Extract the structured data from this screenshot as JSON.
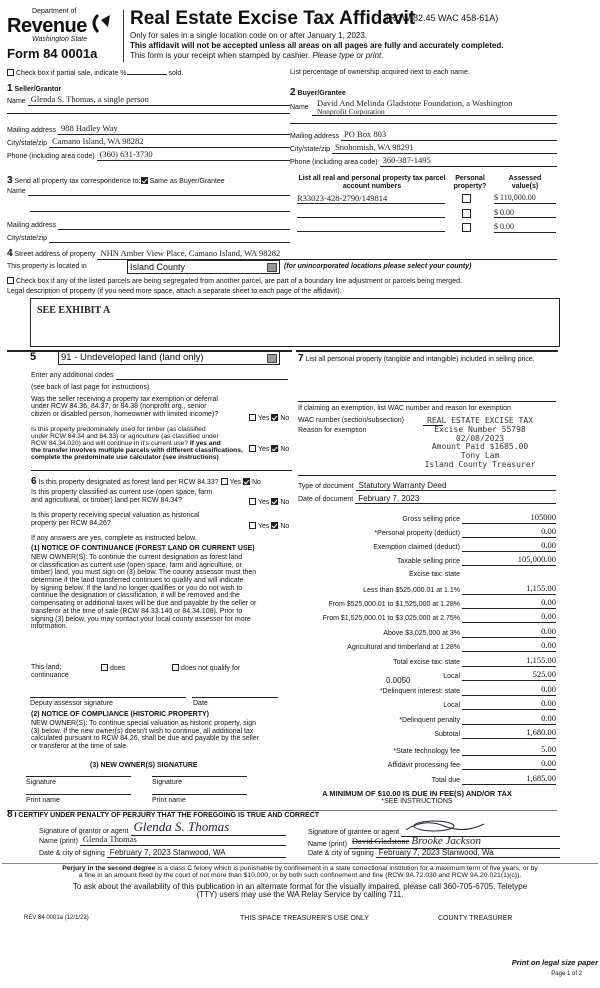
{
  "header": {
    "dept": "Department of",
    "revenue": "Revenue",
    "state": "Washington State",
    "form": "Form 84 0001a",
    "title": "Real Estate Excise Tax Affidavit",
    "rcw": "(RCW 82.45 WAC 458-61A)",
    "line1": "Only for sales in a single location code on or after January 1, 2023.",
    "line2": "This affidavit will not be accepted unless all areas on all pages are fully and accurately completed.",
    "line3": "This form is your receipt when stamped by cashier.",
    "line3_italic": "Please type or print."
  },
  "partial": {
    "label": "Check box if partial sale, indicate %",
    "sold": "sold.",
    "checked": false
  },
  "ownership_note": "List percentage of ownership acquired next to each name.",
  "seller": {
    "num": "1",
    "title": "Seller/Grantor",
    "name_label": "Name",
    "name": "Glenda S. Thomas, a single person",
    "mail_label": "Mailing address",
    "mail": "988 Hadley Way",
    "city_label": "City/state/zip",
    "city": "Camano Island, WA 98282",
    "phone_label": "Phone (including area code)",
    "phone": "(360) 631-3730"
  },
  "buyer": {
    "num": "2",
    "title": "Buyer/Grantee",
    "name_label": "Name",
    "name1": "David And Melinda Gladstone Foundation, a Washington",
    "name2": "Nonprofit Corporation",
    "mail_label": "Mailing address",
    "mail": "PO Box 803",
    "city_label": "City/state/zip",
    "city": "Snohomish, WA 98291",
    "phone_label": "Phone (including area code)",
    "phone": "360-387-1495"
  },
  "sec3": {
    "num": "3",
    "label": "Send all property tax correspondence to:",
    "same_label": "Same as Buyer/Grantee",
    "same_checked": true,
    "name_label": "Name",
    "mail_label": "Mailing address",
    "city_label": "City/state/zip"
  },
  "parcels": {
    "col1": "List all real and personal property tax parcel account numbers",
    "col2": "Personal property?",
    "col3": "Assessed value(s)",
    "rows": [
      {
        "number": "R33023-428-2790/149814",
        "personal": false,
        "value": "$ 110,000.00"
      },
      {
        "number": "",
        "personal": false,
        "value": "$ 0.00"
      },
      {
        "number": "",
        "personal": false,
        "value": "$ 0.00"
      }
    ]
  },
  "sec4": {
    "num": "4",
    "street_label": "Street address of property",
    "street": "NHN Amber View Place, Camano Island, WA 98282",
    "located_label": "This property is located in",
    "county": "Island County",
    "county_note": "(for unincorporated locations please select your county)",
    "segregate_label": "Check box if any of the listed parcels are being segregated from another parcel, are part of a boundary line adjustment or parcels being merged.",
    "legal_label": "Legal description of property (if you need more space, attach a separate sheet to each page of the affidavit).",
    "legal": "SEE EXHIBIT A"
  },
  "sec5": {
    "num": "5",
    "use_code": "91 - Undeveloped land (land only)",
    "codes_label": "Enter any additional codes",
    "codes_note": "(see back of last page for instructions)",
    "q1": [
      "Was the seller receiving a property tax exemption or deferral",
      "under RCW 84.36, 84.37, or 84.38 (nonprofit org., senior",
      "citizen or disabled person, homeowner with limited income)?"
    ],
    "q2": [
      "Is this property predominately used for timber (as classified",
      "under RCW 84.34 and 84.33) or agriculture (as classified under",
      "RCW 84.34.020) and will continue in it's current use?"
    ],
    "q2_bold": [
      "If yes and",
      "the transfer involves multiple parcels with different classifications,",
      "complete the predominate use calculator (see instructions)"
    ],
    "yes": "Yes",
    "no": "No"
  },
  "sec6": {
    "num": "6",
    "q1": "Is this property designated as forest land per RCW 84.33?",
    "q2": [
      "Is this property classified as current use (open space, farm",
      "and agricultural, or timber) land per RCW 84.34?"
    ],
    "q3": [
      "Is this property receiving special valuation as historical",
      "property per RCW 84.26?"
    ],
    "if_yes": "If any answers are yes, complete as instructed below.",
    "n1_title": "(1) NOTICE OF CONTINUANCE (FOREST LAND OR CURRENT USE)",
    "n1": [
      "NEW OWNER(S): To continue the current designation as forest land",
      "or classification as current use (open space, farm and agriculture, or",
      "timber) land, you must sign on (3) below. The county assessor must then",
      "determine if the land transferred continues  to qualify and will indicate",
      "by signing below. If the land no longer qualifies or you do not wish to",
      "continue the designation or classification, it will be removed and the",
      "compensating or additional taxes will be due and payable by the seller or",
      "transferor at the time of sale (RCW 84.33.140 or 84.34.108). Prior to",
      "signing (3) below, you may contact your local county assessor for more",
      "information."
    ],
    "this_land": "This land:",
    "continuance": "continuance",
    "does": "does",
    "does_not": "does not qualify for",
    "deputy": "Deputy assessor signature",
    "date": "Date",
    "n2_title": "(2) NOTICE OF COMPLIANCE (HISTORIC PROPERTY)",
    "n2": [
      "NEW OWNER(S): To continue special valuation as historic property, sign",
      "(3) below. If the new owner(s) doesn't wish to continue, all additional tax",
      "calculated pursuant to RCW 84.26, shall be due and payable by the seller",
      "or transferor at the time of sale"
    ],
    "n3_title": "(3) NEW OWNER(S) SIGNATURE",
    "signature": "Signature",
    "print_name": "Print name"
  },
  "sec7": {
    "num": "7",
    "label": "List all personal property (tangible and intangible) included in selling price.",
    "exempt_label": "If claiming an exemption, list WAC number and reason for exemption",
    "wac_label": "WAC number (section/subsection)",
    "reason_label": "Reason for exemption",
    "doc_type_label": "Type of document",
    "doc_type": "Statutory Warranty Deed",
    "doc_date_label": "Date of document",
    "doc_date": "February 7, 2023"
  },
  "stamp": [
    "REAL ESTATE EXCISE TAX",
    "Excise Number 55798",
    "02/08/2023",
    "Amount Paid $1685.00",
    "Tony Lam",
    "Island County Treasurer"
  ],
  "tax": {
    "rows": [
      {
        "label": "Gross selling price",
        "value": "105000"
      },
      {
        "label": "*Personal property (deduct)",
        "value": "0.00"
      },
      {
        "label": "Exemption claimed (deduct)",
        "value": "0.00"
      },
      {
        "label": "Taxable selling price",
        "value": "105,000.00"
      },
      {
        "label": "Excise tax: state",
        "value": null
      },
      {
        "label": "Less than $525,000.01 at 1.1%",
        "value": "1,155.00"
      },
      {
        "label": "From $525,000.01 to $1,525,000 at 1.28%",
        "value": "0.00"
      },
      {
        "label": "From $1,525,000.01 to $3,025,000 at 2.75%",
        "value": "0.00"
      },
      {
        "label": "Above $3,025,000 at 3%",
        "value": "0.00"
      },
      {
        "label": "Agricultural and timberland at 1.28%",
        "value": "0.00"
      },
      {
        "label": "Total excise tax: state",
        "value": "1,155.00"
      },
      {
        "label": "Local",
        "value": "525.00"
      },
      {
        "label": "*Delinquent interest: state",
        "value": "0.00"
      },
      {
        "label": "Local",
        "value": "0.00"
      },
      {
        "label": "*Delinquent penalty",
        "value": "0.00"
      },
      {
        "label": "Subtotal",
        "value": "1,680.00"
      },
      {
        "label": "*State technology fee",
        "value": "5.00"
      },
      {
        "label": "Affidavit processing fee",
        "value": "0.00"
      },
      {
        "label": "Total due",
        "value": "1,685.00"
      }
    ],
    "local_rate": "0.0050",
    "minimum": "A MINIMUM OF $10.00 IS DUE IN FEE(S) AND/OR TAX",
    "see": "*SEE INSTRUCTIONS"
  },
  "sec8": {
    "num": "8",
    "title": "I CERTIFY UNDER PENALTY OF PERJURY THAT THE FOREGOING IS TRUE AND CORRECT",
    "grantor_sig_label": "Signature of grantor or agent",
    "grantor_sig": "Glenda S. Thomas",
    "grantee_sig_label": "Signature of grantee or agent",
    "name_label": "Name (print)",
    "grantor_name": "Glenda Thomas",
    "grantee_name": "David Gladstone",
    "grantee_name_sig": "Brooke Jackson",
    "date_label": "Date & city of signing",
    "grantor_date": "February 7, 2023  Stanwood, WA",
    "grantee_date": "February 7, 2023  Stanwood, Wa"
  },
  "footer": {
    "perjury_bold": "Perjury in the second degree",
    "perjury1": " is a class C felony which is punishable by confinement in a state correctional institution for a maximum term of five years, or by",
    "perjury2": "a fine in an amount fixed by the court of not more than $10,000, or by both such confinement and fine (RCW 9A.72.030 and RCW 9A.20.021(1)(c)).",
    "ask1": "To ask about the availability of this publication in an alternate format for the visually impaired, please call 360-705-6705. Teletype",
    "ask2": "(TTY) users may use the WA Relay Service by calling 711.",
    "rev": "REV 84 0001a  (12/1/22)",
    "treasurer_use": "THIS SPACE TREASURER'S USE ONLY",
    "county_treasurer": "COUNTY TREASURER",
    "print_legal": "Print on legal size paper",
    "page": "Page 1 of 2"
  }
}
